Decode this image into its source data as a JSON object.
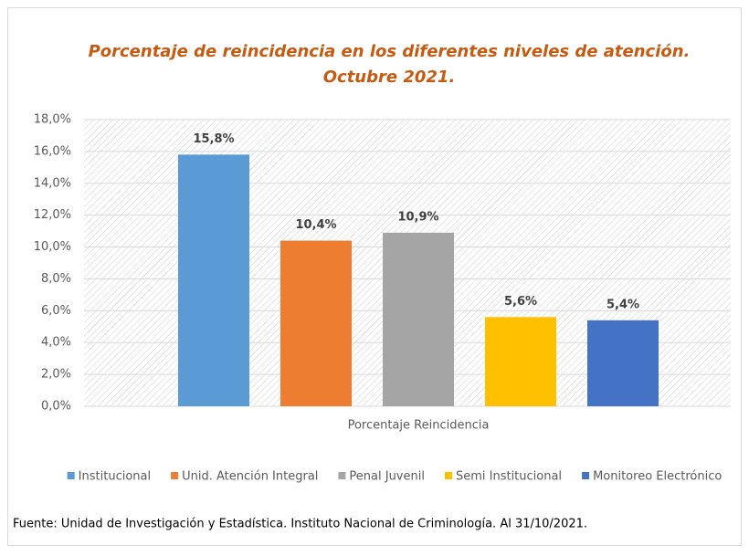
{
  "chart_data": {
    "type": "bar",
    "title": [
      "Porcentaje de reincidencia  en los diferentes niveles de atención.",
      "Octubre 2021."
    ],
    "categories": [
      "Porcentaje Reincidencia"
    ],
    "series": [
      {
        "name": "Institucional",
        "color": "#5B9BD5",
        "values": [
          15.8
        ],
        "value_labels": [
          "15,8%"
        ]
      },
      {
        "name": "Unid. Atención Integral",
        "color": "#ED7D31",
        "values": [
          10.4
        ],
        "value_labels": [
          "10,4%"
        ]
      },
      {
        "name": "Penal Juvenil",
        "color": "#A5A5A5",
        "values": [
          10.9
        ],
        "value_labels": [
          "10,9%"
        ]
      },
      {
        "name": "Semi Institucional",
        "color": "#FFC000",
        "values": [
          5.6
        ],
        "value_labels": [
          "5,6%"
        ]
      },
      {
        "name": "Monitoreo Electrónico",
        "color": "#4472C4",
        "values": [
          5.4
        ],
        "value_labels": [
          "5,4%"
        ]
      }
    ],
    "ylim": [
      0,
      18
    ],
    "yticks": [
      {
        "value": 0,
        "label": "0,0%"
      },
      {
        "value": 2,
        "label": "2,0%"
      },
      {
        "value": 4,
        "label": "4,0%"
      },
      {
        "value": 6,
        "label": "6,0%"
      },
      {
        "value": 8,
        "label": "8,0%"
      },
      {
        "value": 10,
        "label": "10,0%"
      },
      {
        "value": 12,
        "label": "12,0%"
      },
      {
        "value": 14,
        "label": "14,0%"
      },
      {
        "value": 16,
        "label": "16,0%"
      },
      {
        "value": 18,
        "label": "18,0%"
      }
    ],
    "grid": true,
    "legend": "bottom",
    "source": "Fuente: Unidad de Investigación y Estadística. Instituto Nacional de Criminología. Al 31/10/2021."
  }
}
